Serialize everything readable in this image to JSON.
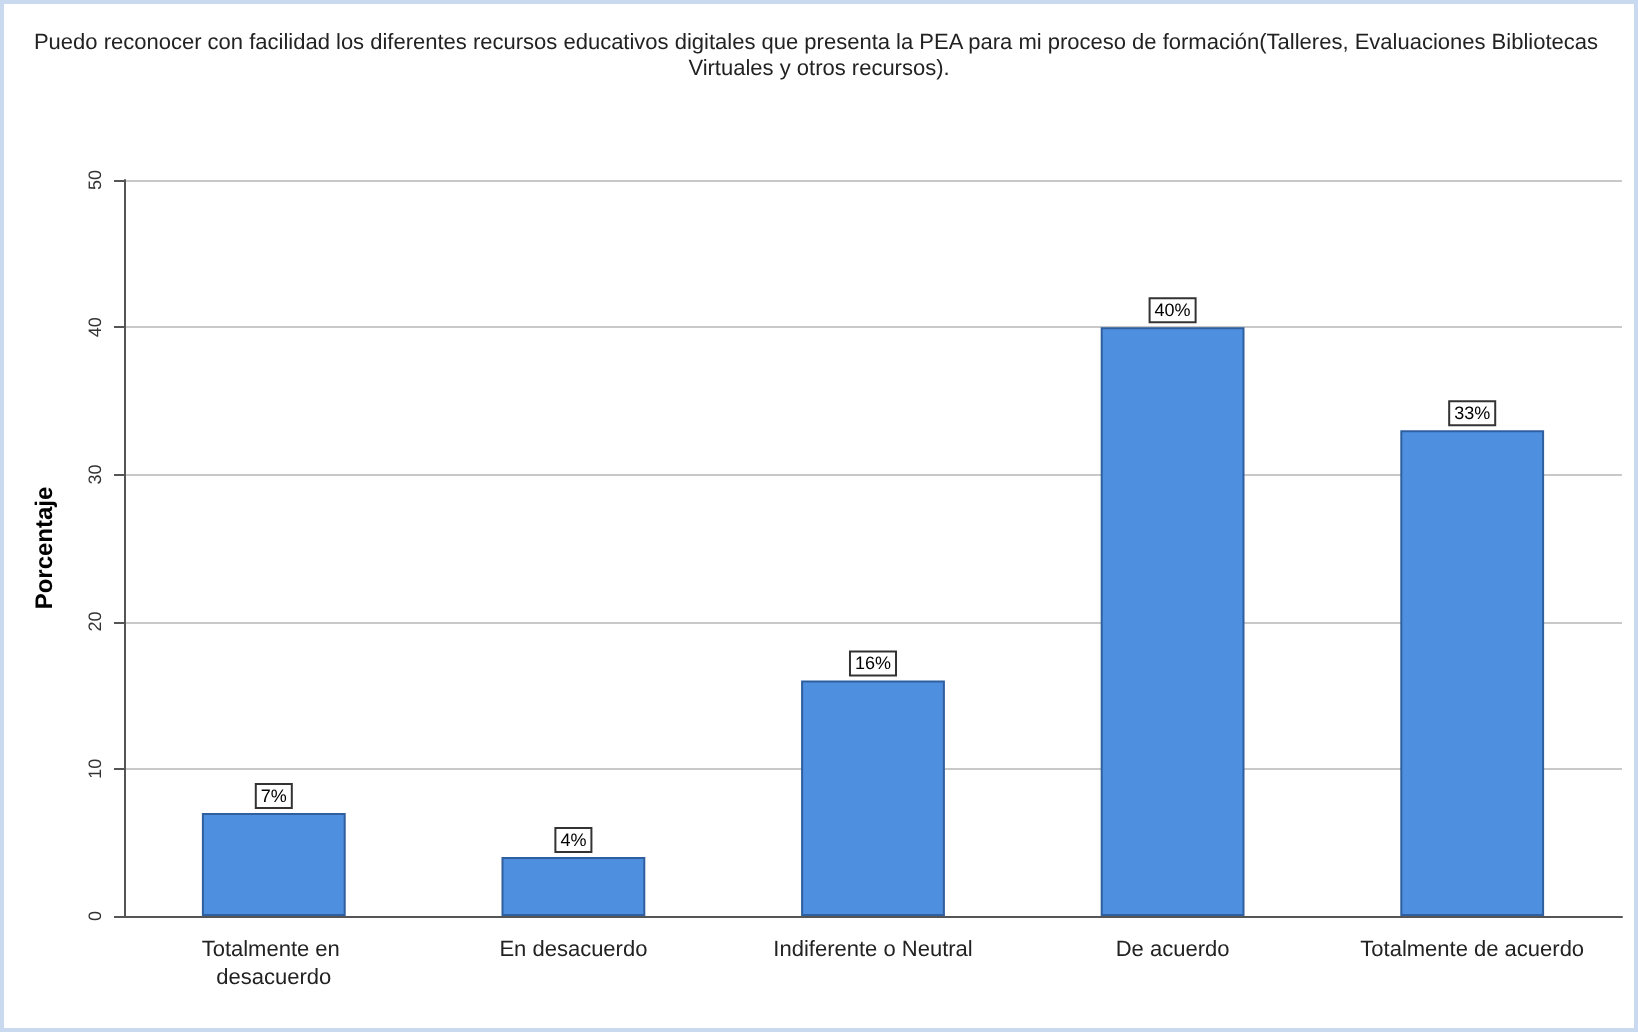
{
  "chart_data": {
    "type": "bar",
    "title": "Puedo reconocer con facilidad los diferentes recursos educativos digitales que presenta la PEA para mi proceso de formación(Talleres, Evaluaciones Bibliotecas Virtuales y otros recursos).",
    "ylabel": "Porcentaje",
    "categories": [
      "Totalmente en desacuerdo",
      "En desacuerdo",
      "Indiferente o Neutral",
      "De acuerdo",
      "Totalmente de acuerdo"
    ],
    "values": [
      7,
      4,
      16,
      40,
      33
    ],
    "value_labels": [
      "7%",
      "4%",
      "16%",
      "40%",
      "33%"
    ],
    "color": "#4f8fe0",
    "ylim": [
      0,
      50
    ],
    "yticks": [
      0,
      10,
      20,
      30,
      40,
      50
    ],
    "grid": "y"
  }
}
